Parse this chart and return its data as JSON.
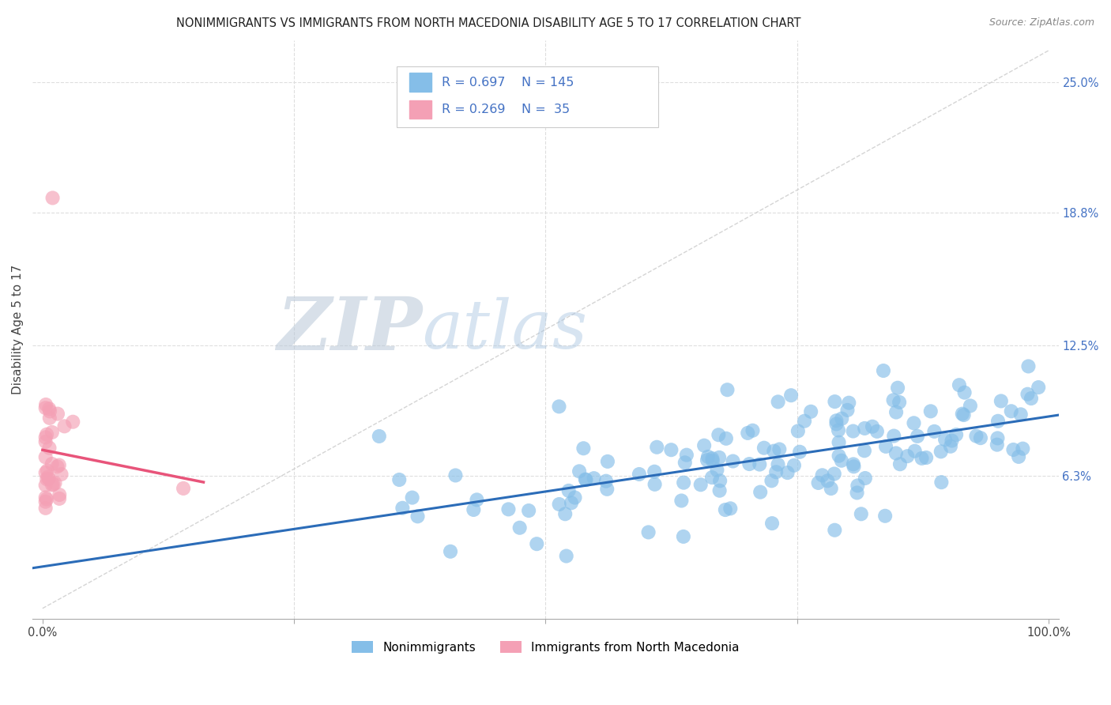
{
  "title": "NONIMMIGRANTS VS IMMIGRANTS FROM NORTH MACEDONIA DISABILITY AGE 5 TO 17 CORRELATION CHART",
  "source": "Source: ZipAtlas.com",
  "ylabel": "Disability Age 5 to 17",
  "y_ticks_right": [
    0.063,
    0.125,
    0.188,
    0.25
  ],
  "y_tick_labels_right": [
    "6.3%",
    "12.5%",
    "18.8%",
    "25.0%"
  ],
  "xlim": [
    -0.01,
    1.01
  ],
  "ylim": [
    -0.005,
    0.27
  ],
  "blue_R": 0.697,
  "blue_N": 145,
  "pink_R": 0.269,
  "pink_N": 35,
  "blue_color": "#85BEE8",
  "pink_color": "#F4A0B5",
  "blue_line_color": "#2B6CB8",
  "pink_line_color": "#E8547A",
  "ref_line_color": "#D0D0D0",
  "grid_color": "#DEDEDE",
  "legend_text_color": "#4472C4",
  "background_color": "#FFFFFF",
  "title_fontsize": 10.5,
  "tick_fontsize": 10.5
}
